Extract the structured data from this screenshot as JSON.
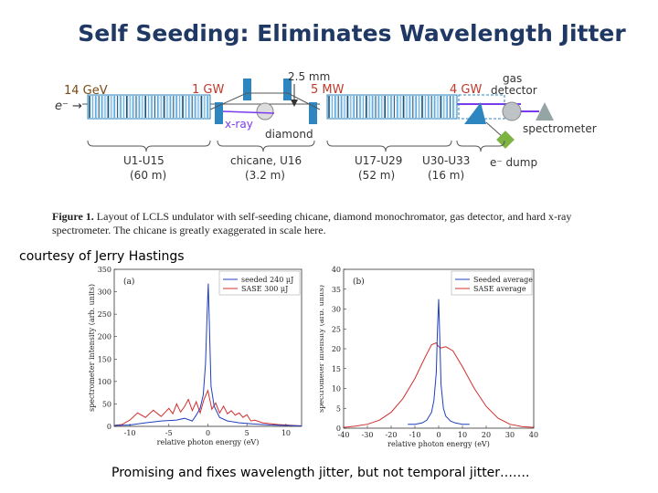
{
  "slide": {
    "title": "Self Seeding: Eliminates Wavelength Jitter",
    "courtesy": "courtesy of Jerry Hastings",
    "footer": "Promising and fixes wavelength jitter, but not temporal jitter……."
  },
  "layout": {
    "energy_in": "14 GeV",
    "electron_in": "e⁻ →",
    "power_1": "1 GW",
    "chicane_gap": "2.5 mm",
    "power_2": "5 MW",
    "power_3": "4 GW",
    "gas_detector": [
      "gas",
      "detector"
    ],
    "xray": "x-ray",
    "diamond": "diamond",
    "spectrometer": "spectrometer",
    "electron_dump": "e⁻ dump",
    "segments": [
      {
        "name": "U1-U15",
        "length": "(60 m)"
      },
      {
        "name": "chicane, U16",
        "length": "(3.2 m)"
      },
      {
        "name": "U17-U29",
        "length": "(52 m)"
      },
      {
        "name": "U30-U33",
        "length": "(16 m)"
      }
    ]
  },
  "figure_caption": {
    "label": "Figure 1.",
    "text": "Layout of LCLS undulator with self-seeding chicane, diamond monochromator, gas detector, and hard x-ray spectrometer.  The chicane is greatly exaggerated in scale here."
  },
  "colors": {
    "title": "#1f3864",
    "power_label": "#c0392b",
    "energy_label": "#7a4a12",
    "magnet": "#2e86c1",
    "detector": "#95a5a6",
    "dump": "#7cb342",
    "seeded": "#1f3fbf",
    "sase": "#d0302e"
  },
  "chart_data": [
    {
      "type": "line",
      "panel": "(a)",
      "xlabel": "relative photon energy (eV)",
      "ylabel": "spectrometer intensity (arb. units)",
      "xlim": [
        -12,
        12
      ],
      "ylim": [
        0,
        350
      ],
      "xticks": [
        -10,
        -5,
        0,
        5,
        10
      ],
      "yticks": [
        0,
        50,
        100,
        150,
        200,
        250,
        300,
        350
      ],
      "legend_position": "top-right",
      "series": [
        {
          "name": "seeded 240 μJ",
          "color": "#1f3fbf",
          "x": [
            -12,
            -10,
            -8,
            -6,
            -4,
            -3,
            -2,
            -1.5,
            -1,
            -0.6,
            -0.3,
            -0.1,
            0.05,
            0.2,
            0.4,
            0.8,
            1.5,
            2.5,
            4,
            6,
            8,
            10,
            12
          ],
          "y": [
            2,
            3,
            8,
            12,
            14,
            18,
            12,
            25,
            40,
            70,
            140,
            250,
            318,
            220,
            90,
            45,
            20,
            12,
            8,
            5,
            3,
            2,
            1
          ]
        },
        {
          "name": "SASE 300 μJ",
          "color": "#d0302e",
          "x": [
            -12,
            -11,
            -10,
            -9,
            -8,
            -7,
            -6,
            -5,
            -4.5,
            -4,
            -3.5,
            -3,
            -2.5,
            -2,
            -1.5,
            -1,
            -0.5,
            0,
            0.5,
            1,
            1.5,
            2,
            2.5,
            3,
            3.5,
            4,
            4.5,
            5,
            5.5,
            6,
            7,
            8,
            9,
            10,
            12
          ],
          "y": [
            2,
            4,
            14,
            30,
            20,
            36,
            22,
            40,
            28,
            50,
            32,
            44,
            60,
            35,
            55,
            30,
            60,
            80,
            38,
            52,
            30,
            45,
            28,
            35,
            25,
            30,
            20,
            26,
            12,
            14,
            8,
            6,
            4,
            3,
            1
          ]
        }
      ]
    },
    {
      "type": "line",
      "panel": "(b)",
      "xlabel": "relative photon energy (eV)",
      "ylabel": "spectrometer intensity (arb. units)",
      "xlim": [
        -40,
        40
      ],
      "ylim": [
        0,
        40
      ],
      "xticks": [
        -40,
        -30,
        -20,
        -10,
        0,
        10,
        20,
        30,
        40
      ],
      "yticks": [
        0,
        5,
        10,
        15,
        20,
        25,
        30,
        35,
        40
      ],
      "legend_position": "top-right",
      "series": [
        {
          "name": "Seeded average",
          "color": "#1f3fbf",
          "x": [
            -13,
            -10,
            -7,
            -5,
            -3,
            -2,
            -1,
            -0.5,
            0,
            0.5,
            1,
            2,
            3,
            5,
            7,
            10,
            13
          ],
          "y": [
            1,
            1,
            1.3,
            2,
            4,
            7,
            14,
            25,
            32.5,
            22,
            11,
            5,
            3,
            1.8,
            1.3,
            1,
            1
          ]
        },
        {
          "name": "SASE average",
          "color": "#d0302e",
          "x": [
            -40,
            -35,
            -30,
            -25,
            -20,
            -15,
            -10,
            -6,
            -3,
            -1,
            0,
            1,
            3,
            6,
            10,
            15,
            20,
            25,
            30,
            35,
            40
          ],
          "y": [
            0.2,
            0.5,
            1,
            2,
            4,
            7.5,
            12.5,
            17.5,
            21,
            21.5,
            20.5,
            20.2,
            20.5,
            19.5,
            15.5,
            10,
            5.5,
            2.5,
            1,
            0.4,
            0.2
          ]
        }
      ]
    }
  ]
}
